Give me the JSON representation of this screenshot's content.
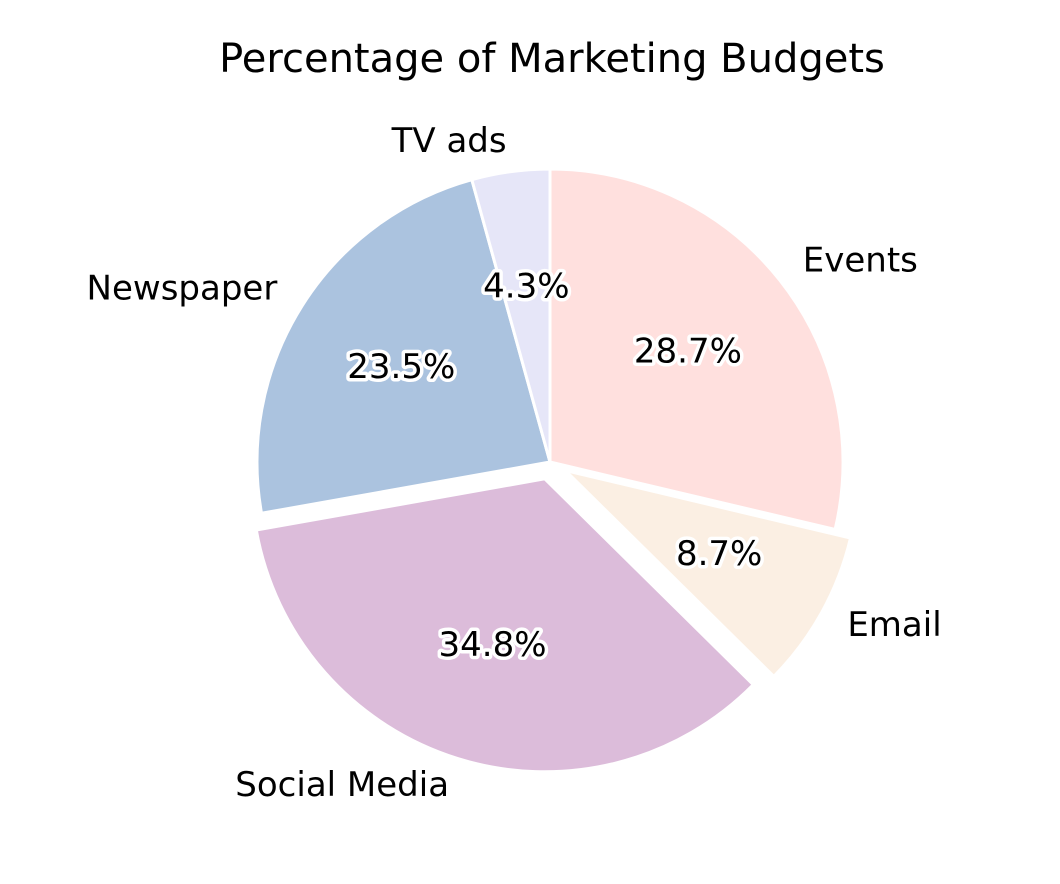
{
  "chart_data": {
    "type": "pie",
    "title": "Percentage of Marketing Budgets",
    "slices": [
      {
        "label": "Events",
        "value": 28.7,
        "pct_label": "28.7%",
        "color": "#ffe0de",
        "explode": 0
      },
      {
        "label": "Email",
        "value": 8.7,
        "pct_label": "8.7%",
        "color": "#fbefe3",
        "explode": 0.06
      },
      {
        "label": "Social Media",
        "value": 34.8,
        "pct_label": "34.8%",
        "color": "#dcbcda",
        "explode": 0.06
      },
      {
        "label": "Newspaper",
        "value": 23.5,
        "pct_label": "23.5%",
        "color": "#abc3df",
        "explode": 0
      },
      {
        "label": "TV ads",
        "value": 4.3,
        "pct_label": "4.3%",
        "color": "#e6e6f8",
        "explode": 0
      }
    ],
    "start_angle_deg": 90,
    "direction": "clockwise",
    "legend": "none"
  }
}
